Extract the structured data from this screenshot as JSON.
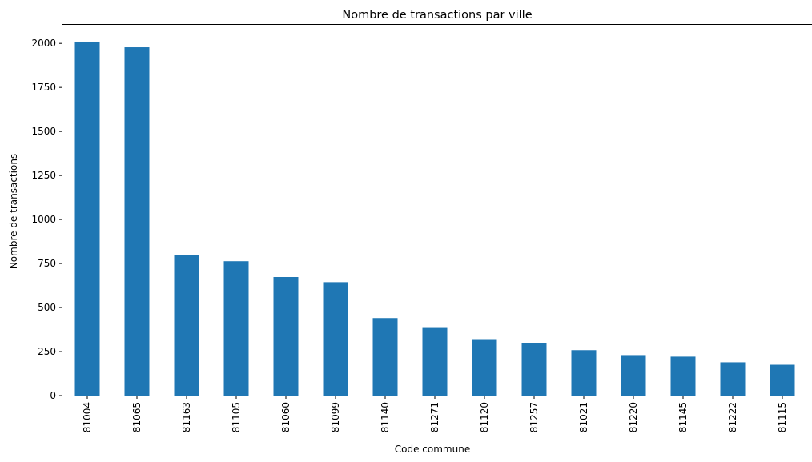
{
  "chart_data": {
    "type": "bar",
    "title": "Nombre de transactions par ville",
    "xlabel": "Code commune",
    "ylabel": "Nombre de transactions",
    "categories": [
      "81004",
      "81065",
      "81163",
      "81105",
      "81060",
      "81099",
      "81140",
      "81271",
      "81120",
      "81257",
      "81021",
      "81220",
      "81145",
      "81222",
      "81115"
    ],
    "values": [
      2010,
      1978,
      800,
      763,
      673,
      644,
      440,
      384,
      316,
      298,
      258,
      230,
      221,
      189,
      175
    ],
    "ylim": [
      0,
      2110
    ],
    "yticks": [
      0,
      250,
      500,
      750,
      1000,
      1250,
      1500,
      1750,
      2000
    ],
    "grid": false,
    "bar_color": "#1f77b4"
  }
}
